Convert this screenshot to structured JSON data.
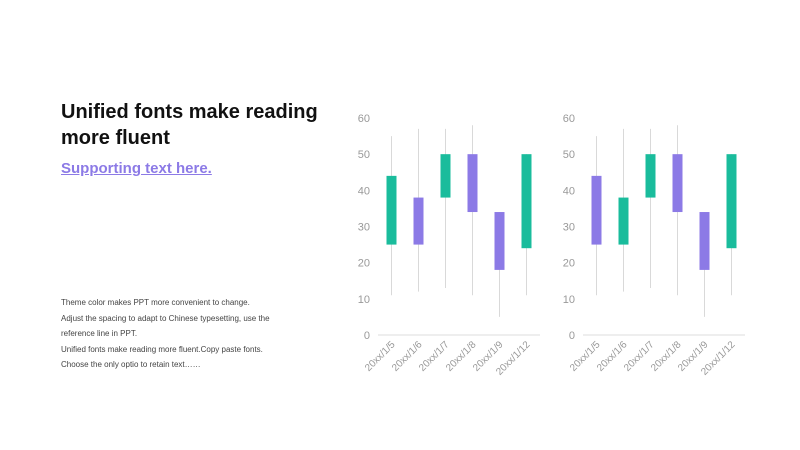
{
  "slide": {
    "headline": "Unified fonts make reading more fluent",
    "subhead": "Supporting text here.",
    "body_lines": [
      "Theme  color makes PPT more convenient to change.",
      "Adjust the spacing to adapt to Chinese typesetting, use the",
      "reference line in PPT.",
      "Unified fonts make reading more fluent.Copy paste fonts.",
      "Choose the only optio to retain text……"
    ]
  },
  "colors": {
    "rise": "#1abc9c",
    "fall": "#8c7ae6",
    "axis_text": "#999999",
    "wick": "#d9d9d9",
    "axis_line": "#dddddd"
  },
  "chart_data": [
    {
      "type": "candlestick",
      "categories": [
        "20xx/1/5",
        "20xx/1/6",
        "20xx/1/7",
        "20xx/1/8",
        "20xx/1/9",
        "20xx/1/12"
      ],
      "ylim": [
        0,
        60
      ],
      "yticks": [
        0,
        10,
        20,
        30,
        40,
        50,
        60
      ],
      "candles": [
        {
          "open": 25,
          "close": 44,
          "low": 11,
          "high": 55
        },
        {
          "open": 38,
          "close": 25,
          "low": 12,
          "high": 57
        },
        {
          "open": 38,
          "close": 50,
          "low": 13,
          "high": 57
        },
        {
          "open": 50,
          "close": 34,
          "low": 11,
          "high": 58
        },
        {
          "open": 34,
          "close": 18,
          "low": 5,
          "high": 34
        },
        {
          "open": 24,
          "close": 50,
          "low": 11,
          "high": 50
        }
      ],
      "grid": false,
      "legend": "none"
    },
    {
      "type": "candlestick",
      "categories": [
        "20xx/1/5",
        "20xx/1/6",
        "20xx/1/7",
        "20xx/1/8",
        "20xx/1/9",
        "20xx/1/12"
      ],
      "ylim": [
        0,
        60
      ],
      "yticks": [
        0,
        10,
        20,
        30,
        40,
        50,
        60
      ],
      "candles": [
        {
          "open": 44,
          "close": 25,
          "low": 11,
          "high": 55
        },
        {
          "open": 25,
          "close": 38,
          "low": 12,
          "high": 57
        },
        {
          "open": 38,
          "close": 50,
          "low": 13,
          "high": 57
        },
        {
          "open": 50,
          "close": 34,
          "low": 11,
          "high": 58
        },
        {
          "open": 34,
          "close": 18,
          "low": 5,
          "high": 34
        },
        {
          "open": 24,
          "close": 50,
          "low": 11,
          "high": 50
        }
      ],
      "grid": false,
      "legend": "none"
    }
  ]
}
